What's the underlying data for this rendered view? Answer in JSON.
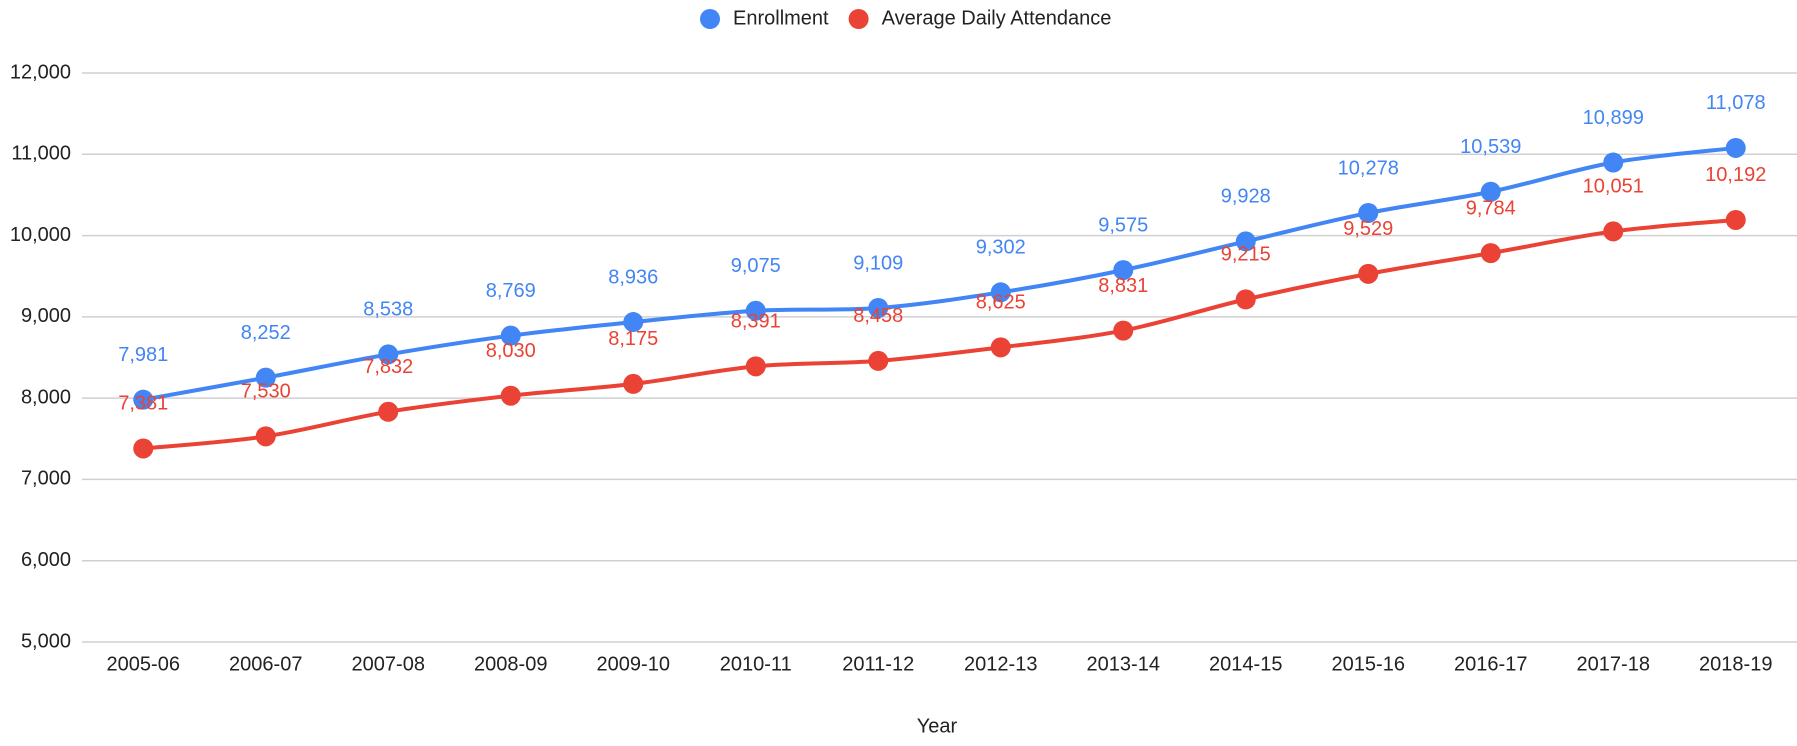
{
  "chart_data": {
    "type": "line",
    "x_label": "Year",
    "categories": [
      "2005-06",
      "2006-07",
      "2007-08",
      "2008-09",
      "2009-10",
      "2010-11",
      "2011-12",
      "2012-13",
      "2013-14",
      "2014-15",
      "2015-16",
      "2016-17",
      "2017-18",
      "2018-19"
    ],
    "series": [
      {
        "name": "Enrollment",
        "color": "#4285f4",
        "values": [
          7981,
          8252,
          8538,
          8769,
          8936,
          9075,
          9109,
          9302,
          9575,
          9928,
          10278,
          10539,
          10899,
          11078
        ],
        "value_labels": [
          "7,981",
          "8,252",
          "8,538",
          "8,769",
          "8,936",
          "9,075",
          "9,109",
          "9,302",
          "9,575",
          "9,928",
          "10,278",
          "10,539",
          "10,899",
          "11,078"
        ]
      },
      {
        "name": "Average Daily Attendance",
        "color": "#ea4335",
        "values": [
          7381,
          7530,
          7832,
          8030,
          8175,
          8391,
          8458,
          8625,
          8831,
          9215,
          9529,
          9784,
          10051,
          10192
        ],
        "value_labels": [
          "7,381",
          "7,530",
          "7,832",
          "8,030",
          "8,175",
          "8,391",
          "8,458",
          "8,625",
          "8,831",
          "9,215",
          "9,529",
          "9,784",
          "10,051",
          "10,192"
        ]
      }
    ],
    "ylim": [
      5000,
      12000
    ],
    "yticks": [
      {
        "value": 5000,
        "label": "5,000"
      },
      {
        "value": 6000,
        "label": "6,000"
      },
      {
        "value": 7000,
        "label": "7,000"
      },
      {
        "value": 8000,
        "label": "8,000"
      },
      {
        "value": 9000,
        "label": "9,000"
      },
      {
        "value": 10000,
        "label": "10,000"
      },
      {
        "value": 11000,
        "label": "11,000"
      },
      {
        "value": 12000,
        "label": "12,000"
      }
    ],
    "grid": true,
    "legend": "top"
  }
}
